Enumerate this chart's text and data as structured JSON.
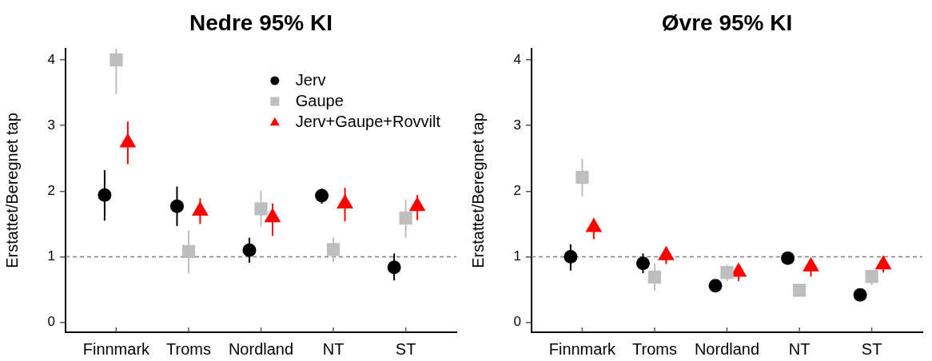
{
  "chart_data": [
    {
      "type": "scatter",
      "title": "Nedre 95% KI",
      "ylabel": "Erstattet/Beregnet tap",
      "categories": [
        "Finnmark",
        "Troms",
        "Nordland",
        "NT",
        "ST"
      ],
      "ylim": [
        -0.15,
        4.17
      ],
      "yticks": [
        0,
        1,
        2,
        3,
        4
      ],
      "legend": "top right",
      "ref_lines": [
        {
          "axis": "y",
          "value": 1,
          "color": "#808080",
          "line_style": "dashed"
        }
      ],
      "series": [
        {
          "name": "Jerv",
          "color": "#000000",
          "marker": "circle",
          "values": [
            1.94,
            1.77,
            1.1,
            1.93,
            0.84
          ],
          "errors": [
            [
              1.55,
              2.32
            ],
            [
              1.47,
              2.07
            ],
            [
              0.91,
              1.29
            ],
            [
              1.81,
              2.04
            ],
            [
              0.64,
              1.05
            ]
          ]
        },
        {
          "name": "Gaupe",
          "color": "#bebebe",
          "marker": "square",
          "values": [
            4.0,
            1.08,
            1.73,
            1.11,
            1.59
          ],
          "errors": [
            [
              3.48,
              4.17
            ],
            [
              0.75,
              1.4
            ],
            [
              1.46,
              2.01
            ],
            [
              0.92,
              1.29
            ],
            [
              1.29,
              1.87
            ]
          ]
        },
        {
          "name": "Jerv+Gaupe+Rovvilt",
          "color": "#ff0000",
          "marker": "triangle",
          "values": [
            2.74,
            1.7,
            1.6,
            1.81,
            1.77
          ],
          "errors": [
            [
              2.41,
              3.06
            ],
            [
              1.5,
              1.89
            ],
            [
              1.32,
              1.81
            ],
            [
              1.54,
              2.05
            ],
            [
              1.56,
              1.94
            ]
          ]
        }
      ]
    },
    {
      "type": "scatter",
      "title": "Øvre 95% KI",
      "ylabel": "Erstattet/Beregnet tap",
      "categories": [
        "Finnmark",
        "Troms",
        "Nordland",
        "NT",
        "ST"
      ],
      "ylim": [
        -0.15,
        4.17
      ],
      "yticks": [
        0,
        1,
        2,
        3,
        4
      ],
      "ref_lines": [
        {
          "axis": "y",
          "value": 1,
          "color": "#808080",
          "line_style": "dashed"
        }
      ],
      "series": [
        {
          "color": "#000000",
          "marker": "circle",
          "values": [
            1.0,
            0.9,
            0.56,
            0.98,
            0.42
          ],
          "errors": [
            [
              0.79,
              1.19
            ],
            [
              0.75,
              1.05
            ],
            null,
            null,
            null
          ]
        },
        {
          "color": "#bebebe",
          "marker": "square",
          "values": [
            2.21,
            0.69,
            0.76,
            0.49,
            0.7
          ],
          "errors": [
            [
              1.92,
              2.49
            ],
            [
              0.48,
              0.9
            ],
            [
              0.63,
              0.88
            ],
            null,
            [
              0.57,
              0.8
            ]
          ]
        },
        {
          "color": "#ff0000",
          "marker": "triangle",
          "values": [
            1.45,
            1.02,
            0.77,
            0.85,
            0.88
          ],
          "errors": [
            [
              1.27,
              1.58
            ],
            [
              0.89,
              1.12
            ],
            [
              0.63,
              0.86
            ],
            [
              0.7,
              0.94
            ],
            [
              0.76,
              0.96
            ]
          ]
        }
      ]
    }
  ]
}
